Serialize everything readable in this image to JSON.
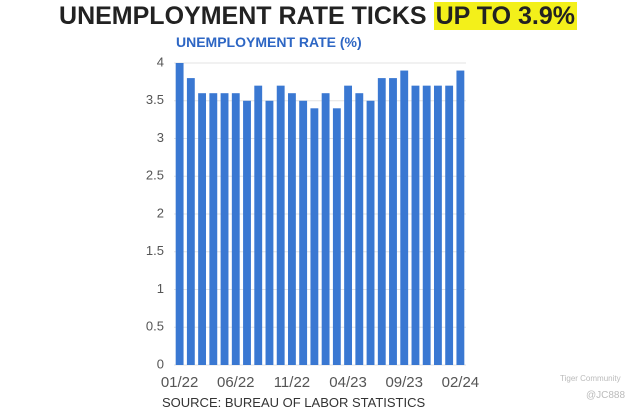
{
  "chart_data": {
    "type": "bar",
    "title": "UNEMPLOYMENT RATE TICKS",
    "title_highlight": "UP TO 3.9%",
    "subtitle": "UNEMPLOYMENT RATE (%)",
    "source": "SOURCE: BUREAU OF LABOR STATISTICS",
    "watermark": [
      "Tiger Community",
      "@JC888"
    ],
    "categories": [
      "01/22",
      null,
      null,
      null,
      null,
      "06/22",
      null,
      null,
      null,
      null,
      "11/22",
      null,
      null,
      null,
      null,
      "04/23",
      null,
      null,
      null,
      null,
      "09/23",
      null,
      null,
      null,
      null,
      "02/24"
    ],
    "values": [
      4.0,
      3.8,
      3.6,
      3.6,
      3.6,
      3.6,
      3.5,
      3.7,
      3.5,
      3.7,
      3.6,
      3.5,
      3.4,
      3.6,
      3.4,
      3.7,
      3.6,
      3.5,
      3.8,
      3.8,
      3.9,
      3.7,
      3.7,
      3.7,
      3.7,
      3.9
    ],
    "color": "#3a78d2",
    "ylim": [
      0,
      4
    ],
    "yticks": [
      0,
      0.5,
      1,
      1.5,
      2,
      2.5,
      3,
      3.5,
      4
    ],
    "grid": true
  }
}
